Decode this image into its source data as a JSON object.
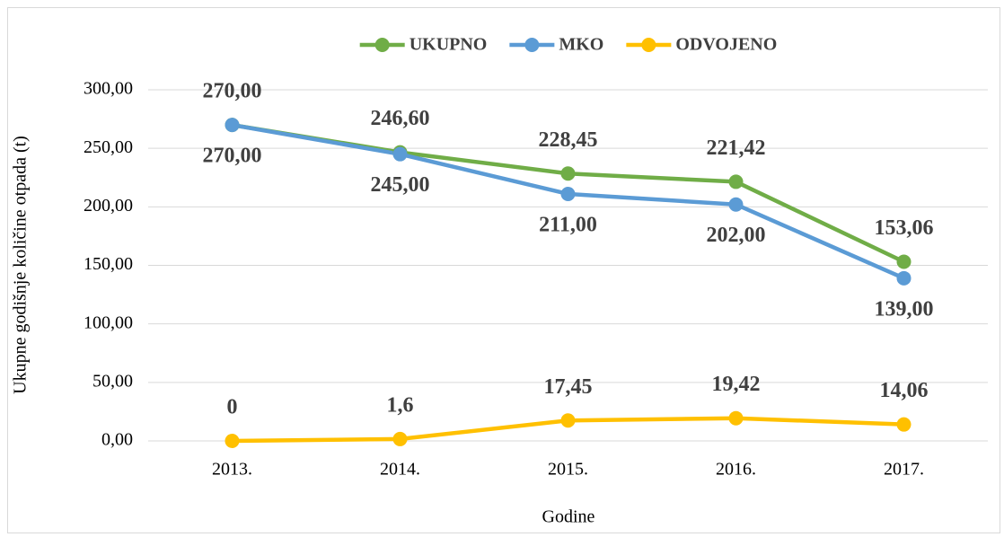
{
  "chart_data": {
    "type": "line",
    "x_label": "Godine",
    "y_label": "Ukupne godišnje količine otpada (t)",
    "categories": [
      "2013.",
      "2014.",
      "2015.",
      "2016.",
      "2017."
    ],
    "series": [
      {
        "name": "UKUPNO",
        "color": "#70ad47",
        "values": [
          270,
          246.6,
          228.45,
          221.42,
          153.06
        ],
        "value_labels": [
          "270,00",
          "246,60",
          "228,45",
          "221,42",
          "153,06"
        ]
      },
      {
        "name": "MKO",
        "color": "#5b9bd5",
        "values": [
          270,
          245,
          211,
          202,
          139
        ],
        "value_labels": [
          "270,00",
          "245,00",
          "211,00",
          "202,00",
          "139,00"
        ]
      },
      {
        "name": "ODVOJENO",
        "color": "#ffc000",
        "values": [
          0,
          1.6,
          17.45,
          19.42,
          14.06
        ],
        "value_labels": [
          "0",
          "1,6",
          "17,45",
          "19,42",
          "14,06"
        ]
      }
    ],
    "ylim": [
      0,
      300
    ],
    "yticks": [
      {
        "value": 0,
        "label": "0,00"
      },
      {
        "value": 50,
        "label": "50,00"
      },
      {
        "value": 100,
        "label": "100,00"
      },
      {
        "value": 150,
        "label": "150,00"
      },
      {
        "value": 200,
        "label": "200,00"
      },
      {
        "value": 250,
        "label": "250,00"
      },
      {
        "value": 300,
        "label": "300,00"
      }
    ],
    "grid": true,
    "legend": "top"
  }
}
